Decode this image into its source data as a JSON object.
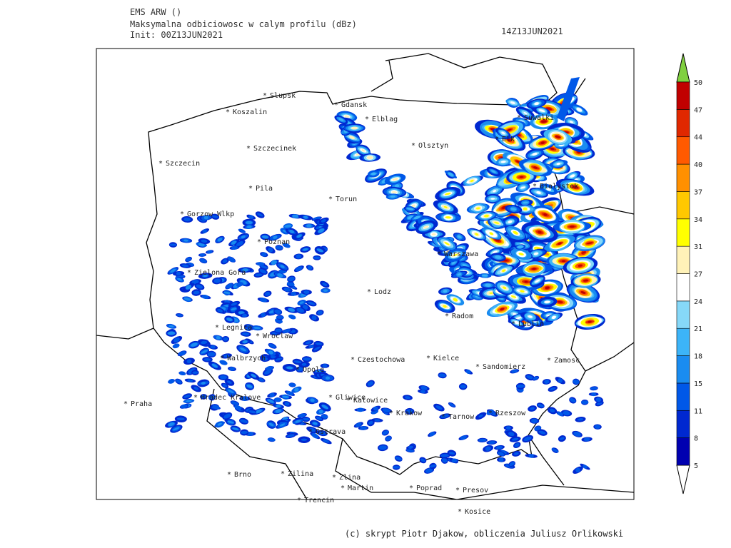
{
  "header": {
    "model": "EMS ARW ()",
    "field": "Maksymalna odbiciowosc w calym profilu (dBz)",
    "init": "Init: 00Z13JUN2021",
    "valid": "14Z13JUN2021"
  },
  "cities": [
    "Slupsk",
    "Koszalin",
    "Gdansk",
    "Elblag",
    "Suwalki",
    "Szczecinek",
    "Olsztyn",
    "Elk",
    "Szczecin",
    "Pila",
    "Torun",
    "Bialystok",
    "Gorzow Wlkp",
    "Poznan",
    "Warszawa",
    "Zielona Gora",
    "Lodz",
    "Radom",
    "Lublin",
    "Legnica",
    "Wroclaw",
    "Walbrzych",
    "Czestochowa",
    "Kielce",
    "Sandomierz",
    "Zamosc",
    "Opole",
    "Praha",
    "Hradec Kralove",
    "Gliwice",
    "Katowice",
    "Krakow",
    "Tarnow",
    "Rzeszow",
    "Ostrava",
    "Brno",
    "Zilina",
    "Zlina",
    "Martin",
    "Poprad",
    "Presov",
    "Trencin",
    "Kosice"
  ],
  "colorbar": {
    "levels": [
      "5",
      "8",
      "11",
      "15",
      "18",
      "21",
      "24",
      "27",
      "31",
      "34",
      "37",
      "40",
      "44",
      "47",
      "50"
    ],
    "colors": [
      "#0000b0",
      "#0028d0",
      "#0058e8",
      "#1a8cf0",
      "#3cb4f8",
      "#86d8f8",
      "#ffffff",
      "#fff2b8",
      "#ffff00",
      "#ffc800",
      "#ff9000",
      "#ff5a00",
      "#e02800",
      "#c00000"
    ],
    "over": "#80d040",
    "under": "#ffffff"
  },
  "footer": "(c) skrypt Piotr Djakow, obliczenia Juliusz Orlikowski"
}
